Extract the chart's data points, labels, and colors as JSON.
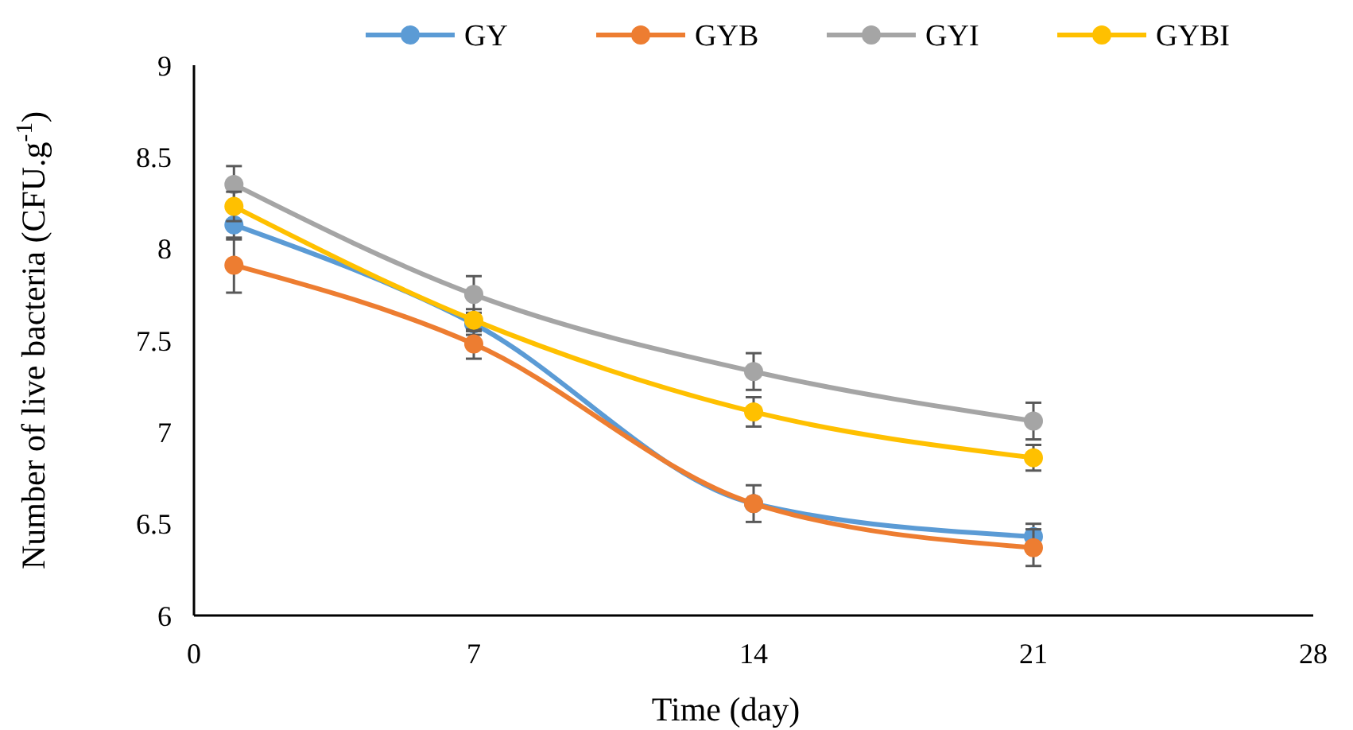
{
  "chart_data": {
    "type": "line",
    "xlabel": "Time (day)",
    "ylabel": "Number of live bacteria (CFU.g$^{-1}$)",
    "x": [
      1,
      7,
      14,
      21
    ],
    "xlim": [
      0,
      28
    ],
    "xticks": [
      0,
      7,
      14,
      21,
      28
    ],
    "ylim": [
      6,
      9
    ],
    "yticks": [
      6,
      6.5,
      7,
      7.5,
      8,
      8.5,
      9
    ],
    "grid": false,
    "legend": "top",
    "marker": "circle",
    "line_style": "solid",
    "series": [
      {
        "name": "GY",
        "color": "#5b9bd5",
        "values": [
          8.13,
          7.59,
          6.61,
          6.43
        ],
        "errors": [
          0.08,
          0.06,
          null,
          0.07
        ]
      },
      {
        "name": "GYB",
        "color": "#ed7d31",
        "values": [
          7.91,
          7.48,
          6.61,
          6.37
        ],
        "errors": [
          0.15,
          0.08,
          0.1,
          0.1
        ]
      },
      {
        "name": "GYI",
        "color": "#a5a5a5",
        "values": [
          8.35,
          7.75,
          7.33,
          7.06
        ],
        "errors": [
          0.1,
          0.1,
          0.1,
          0.1
        ]
      },
      {
        "name": "GYBI",
        "color": "#ffc000",
        "values": [
          8.23,
          7.61,
          7.11,
          6.86
        ],
        "errors": [
          0.08,
          0.06,
          0.08,
          0.07
        ]
      }
    ]
  }
}
